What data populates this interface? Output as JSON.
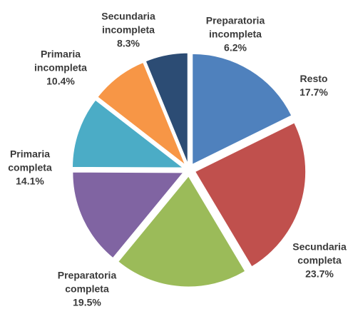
{
  "chart_data": {
    "type": "pie",
    "categories": [
      "Resto",
      "Secundaria completa",
      "Preparatoria completa",
      "Primaria completa",
      "Primaria incompleta",
      "Secundaria incompleta",
      "Preparatoria incompleta"
    ],
    "values": [
      17.7,
      23.7,
      19.5,
      14.1,
      10.4,
      8.3,
      6.2
    ],
    "value_labels": [
      "17.7%",
      "23.7%",
      "19.5%",
      "14.1%",
      "10.4%",
      "8.3%",
      "6.2%"
    ],
    "colors": [
      "#4f81bd",
      "#c0504d",
      "#9bbb59",
      "#8064a2",
      "#4bacc6",
      "#f79646",
      "#2c4c74"
    ]
  }
}
